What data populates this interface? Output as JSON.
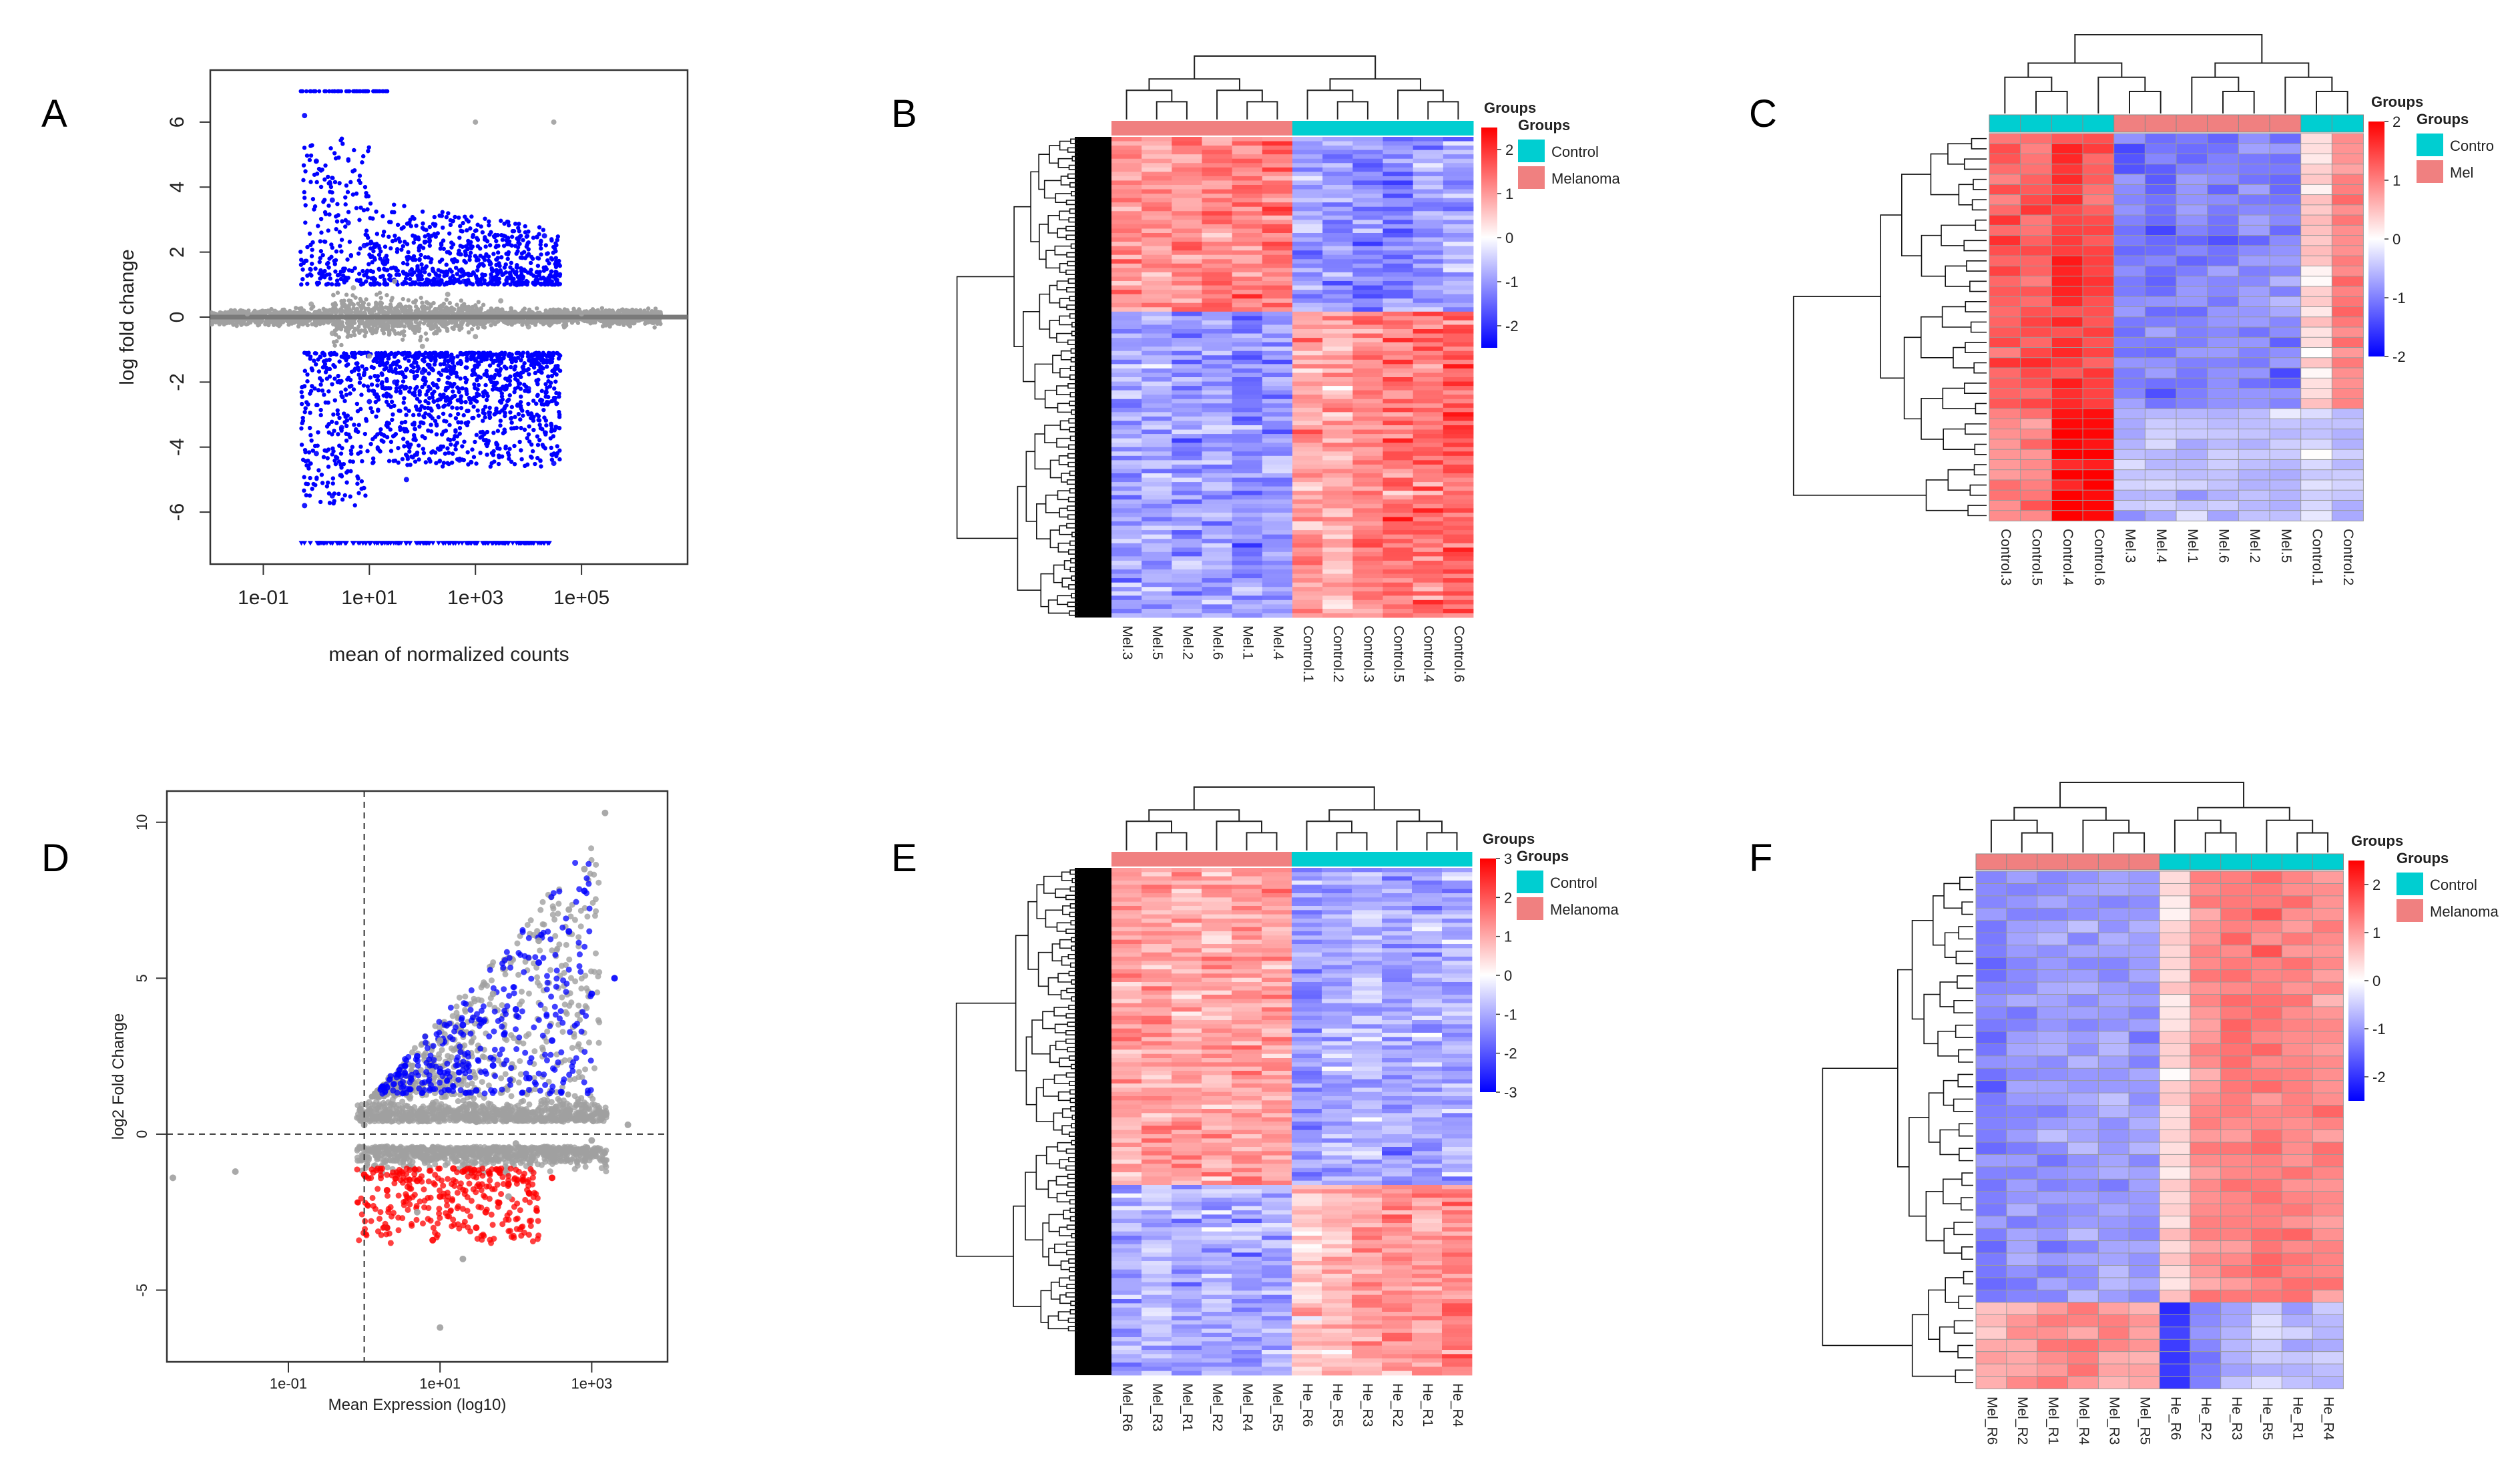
{
  "colors": {
    "control": "#00CED1",
    "melanoma": "#F08080",
    "significant_blue": "#0000FF",
    "significant_red": "#FF0000",
    "nonsignificant": "#A0A0A0",
    "heat_low": "#0000FF",
    "heat_mid": "#FFFFFF",
    "heat_high": "#FF0000"
  },
  "panel_letters": [
    "A",
    "B",
    "C",
    "D",
    "E",
    "F"
  ],
  "chart_data": [
    {
      "panel": "A",
      "type": "scatter",
      "subtype": "MA plot",
      "xlabel": "mean of normalized counts",
      "ylabel": "log fold change",
      "x_scale": "log10",
      "xlim": [
        0.01,
        10000000
      ],
      "ylim": [
        -7.6,
        7.6
      ],
      "x_ticks": [
        "1e-01",
        "1e+01",
        "1e+03",
        "1e+05"
      ],
      "y_ticks": [
        "-6",
        "-4",
        "-2",
        "0",
        "2",
        "4",
        "6"
      ],
      "series": [
        {
          "color": "#A0A0A0",
          "points": [
            [
              0.05,
              0.1
            ],
            [
              0.2,
              -0.2
            ],
            [
              0.8,
              0.4
            ],
            [
              2,
              -0.5
            ],
            [
              5,
              0.9
            ],
            [
              10,
              -1.2
            ],
            [
              30,
              1.1
            ],
            [
              100,
              -0.9
            ],
            [
              300,
              0.7
            ],
            [
              1000,
              -0.6
            ],
            [
              3000,
              0.5
            ],
            [
              10000,
              -0.3
            ],
            [
              30000,
              0.2
            ],
            [
              100000,
              0.1
            ],
            [
              1000,
              6.0
            ],
            [
              30000,
              6.0
            ]
          ]
        },
        {
          "color": "#0000FF",
          "points": [
            [
              0.6,
              6.2
            ],
            [
              1,
              4.8
            ],
            [
              2,
              3.6
            ],
            [
              4,
              2.9
            ],
            [
              8,
              2.2
            ],
            [
              20,
              1.8
            ],
            [
              60,
              1.4
            ],
            [
              200,
              1.2
            ],
            [
              600,
              1.1
            ],
            [
              2000,
              1.2
            ],
            [
              6000,
              1.0
            ],
            [
              20000,
              2.5
            ],
            [
              0.6,
              -5.8
            ],
            [
              1,
              -4.2
            ],
            [
              3,
              -3.4
            ],
            [
              10,
              -2.6
            ],
            [
              30,
              -2.0
            ],
            [
              100,
              -1.7
            ],
            [
              300,
              -1.5
            ],
            [
              1000,
              -1.3
            ],
            [
              3000,
              -1.4
            ],
            [
              10000,
              -2.2
            ],
            [
              30000,
              -4.5
            ],
            [
              2,
              -5.5
            ],
            [
              50,
              -5.0
            ],
            [
              500,
              -4.4
            ]
          ]
        }
      ]
    },
    {
      "panel": "B",
      "type": "heatmap",
      "columns": [
        "Mel.3",
        "Mel.5",
        "Mel.2",
        "Mel.6",
        "Mel.1",
        "Mel.4",
        "Control.1",
        "Control.2",
        "Control.3",
        "Control.5",
        "Control.4",
        "Control.6"
      ],
      "column_groups": [
        "Melanoma",
        "Melanoma",
        "Melanoma",
        "Melanoma",
        "Melanoma",
        "Melanoma",
        "Control",
        "Control",
        "Control",
        "Control",
        "Control",
        "Control"
      ],
      "legend_title": "Groups",
      "legend_items": [
        "Control",
        "Melanoma"
      ],
      "scale_ticks": [
        "2",
        "1",
        "0",
        "-1",
        "-2"
      ],
      "value_range": [
        -2.5,
        2.5
      ],
      "row_blocks": [
        {
          "rows": 40,
          "pattern": [
            1.2,
            1.0,
            1.1,
            1.3,
            1.2,
            1.4,
            -0.9,
            -1.0,
            -1.1,
            -1.2,
            -1.0,
            -0.9
          ]
        },
        {
          "rows": 70,
          "pattern": [
            -0.9,
            -0.8,
            -1.0,
            -0.9,
            -1.1,
            -1.0,
            1.0,
            0.8,
            1.2,
            1.3,
            1.4,
            1.5
          ]
        }
      ]
    },
    {
      "panel": "C",
      "type": "heatmap",
      "columns": [
        "Control.3",
        "Control.5",
        "Control.4",
        "Control.6",
        "Mel.3",
        "Mel.4",
        "Mel.1",
        "Mel.6",
        "Mel.2",
        "Mel.5",
        "Control.1",
        "Control.2"
      ],
      "column_groups": [
        "Control",
        "Control",
        "Control",
        "Control",
        "Melanoma",
        "Melanoma",
        "Melanoma",
        "Melanoma",
        "Melanoma",
        "Melanoma",
        "Control",
        "Control"
      ],
      "legend_title": "Groups",
      "legend_items": [
        "Contro",
        "Mel"
      ],
      "scale_ticks": [
        "2",
        "1",
        "0",
        "-1",
        "-2"
      ],
      "value_range": [
        -2,
        2
      ],
      "row_blocks": [
        {
          "rows": 27,
          "pattern": [
            1.3,
            1.2,
            1.6,
            1.4,
            -1.0,
            -1.1,
            -1.0,
            -1.0,
            -0.9,
            -1.0,
            0.3,
            1.0
          ]
        },
        {
          "rows": 11,
          "pattern": [
            1.0,
            1.1,
            2.0,
            2.0,
            -0.5,
            -0.5,
            -0.5,
            -0.5,
            -0.5,
            -0.5,
            -0.4,
            -0.5
          ]
        }
      ]
    },
    {
      "panel": "D",
      "type": "scatter",
      "subtype": "MA plot",
      "xlabel": "Mean Expression (log10)",
      "ylabel": "log2 Fold Change",
      "x_scale": "log10",
      "xlim": [
        0.0025,
        10000
      ],
      "ylim": [
        -7.3,
        11
      ],
      "x_ticks": [
        "1e-01",
        "1e+01",
        "1e+03"
      ],
      "y_ticks": [
        "-5",
        "0",
        "5",
        "10"
      ],
      "vline": 1,
      "hline": 0,
      "series": [
        {
          "color": "#A0A0A0",
          "points": [
            [
              1,
              0.3
            ],
            [
              2,
              -0.4
            ],
            [
              5,
              0.6
            ],
            [
              10,
              -0.5
            ],
            [
              30,
              0.4
            ],
            [
              100,
              -0.3
            ],
            [
              300,
              0.5
            ],
            [
              1000,
              -0.2
            ],
            [
              10,
              3.0
            ],
            [
              50,
              4.5
            ],
            [
              200,
              6.2
            ],
            [
              500,
              7.2
            ],
            [
              800,
              8.5
            ],
            [
              1500,
              10.3
            ],
            [
              3000,
              0.3
            ],
            [
              0.003,
              -1.4
            ],
            [
              0.02,
              -1.2
            ],
            [
              2,
              -3.0
            ],
            [
              20,
              -4.0
            ],
            [
              10,
              -6.2
            ],
            [
              5,
              -2.5
            ],
            [
              80,
              -2.0
            ]
          ]
        },
        {
          "color": "#0000FF",
          "points": [
            [
              2,
              1.5
            ],
            [
              5,
              2.5
            ],
            [
              10,
              2.0
            ],
            [
              20,
              3.5
            ],
            [
              50,
              2.2
            ],
            [
              100,
              4.0
            ],
            [
              200,
              5.5
            ],
            [
              300,
              3.0
            ],
            [
              500,
              6.5
            ],
            [
              800,
              7.8
            ],
            [
              1000,
              4.5
            ],
            [
              2000,
              5.0
            ],
            [
              150,
              1.8
            ],
            [
              30,
              1.4
            ],
            [
              70,
              3.2
            ]
          ]
        },
        {
          "color": "#FF0000",
          "points": [
            [
              1,
              -1.3
            ],
            [
              2,
              -1.8
            ],
            [
              5,
              -1.5
            ],
            [
              10,
              -2.0
            ],
            [
              20,
              -1.2
            ],
            [
              40,
              -2.5
            ],
            [
              80,
              -1.6
            ],
            [
              150,
              -1.9
            ],
            [
              300,
              -1.4
            ],
            [
              2,
              -3.0
            ],
            [
              8,
              -3.4
            ],
            [
              30,
              -3.0
            ],
            [
              60,
              -2.2
            ],
            [
              15,
              -1.1
            ]
          ]
        }
      ]
    },
    {
      "panel": "E",
      "type": "heatmap",
      "columns": [
        "Mel_R6",
        "Mel_R3",
        "Mel_R1",
        "Mel_R2",
        "Mel_R4",
        "Mel_R5",
        "He_R6",
        "He_R5",
        "He_R3",
        "He_R2",
        "He_R1",
        "He_R4"
      ],
      "column_groups": [
        "Melanoma",
        "Melanoma",
        "Melanoma",
        "Melanoma",
        "Melanoma",
        "Melanoma",
        "Control",
        "Control",
        "Control",
        "Control",
        "Control",
        "Control"
      ],
      "legend_title": "Groups",
      "legend_items": [
        "Control",
        "Melanoma"
      ],
      "scale_ticks": [
        "3",
        "2",
        "1",
        "0",
        "-1",
        "-2",
        "-3"
      ],
      "value_range": [
        -3,
        3
      ],
      "row_blocks": [
        {
          "rows": 75,
          "pattern": [
            1.0,
            1.2,
            1.1,
            1.0,
            1.2,
            1.1,
            -1.2,
            -1.0,
            -0.9,
            -1.1,
            -1.0,
            -0.9
          ]
        },
        {
          "rows": 45,
          "pattern": [
            -0.9,
            -0.8,
            -1.0,
            -0.9,
            -1.1,
            -1.0,
            0.6,
            0.8,
            1.2,
            1.3,
            1.1,
            1.4
          ]
        }
      ]
    },
    {
      "panel": "F",
      "type": "heatmap",
      "columns": [
        "Mel_R6",
        "Mel_R2",
        "Mel_R1",
        "Mel_R4",
        "Mel_R3",
        "Mel_R5",
        "He_R6",
        "He_R2",
        "He_R3",
        "He_R5",
        "He_R1",
        "He_R4"
      ],
      "column_groups": [
        "Melanoma",
        "Melanoma",
        "Melanoma",
        "Melanoma",
        "Melanoma",
        "Melanoma",
        "Control",
        "Control",
        "Control",
        "Control",
        "Control",
        "Control"
      ],
      "legend_title": "Groups",
      "legend_items": [
        "Control",
        "Melanoma"
      ],
      "scale_ticks": [
        "2",
        "1",
        "0",
        "-1",
        "-2"
      ],
      "value_range": [
        -2.5,
        2.5
      ],
      "row_blocks": [
        {
          "rows": 35,
          "pattern": [
            -1.3,
            -1.1,
            -1.0,
            -1.0,
            -0.9,
            -1.0,
            0.4,
            1.1,
            1.3,
            1.3,
            1.2,
            1.1
          ]
        },
        {
          "rows": 7,
          "pattern": [
            0.8,
            1.0,
            1.1,
            1.2,
            1.0,
            0.9,
            -2.0,
            -1.2,
            -0.8,
            -0.6,
            -0.8,
            -0.7
          ]
        }
      ]
    }
  ]
}
